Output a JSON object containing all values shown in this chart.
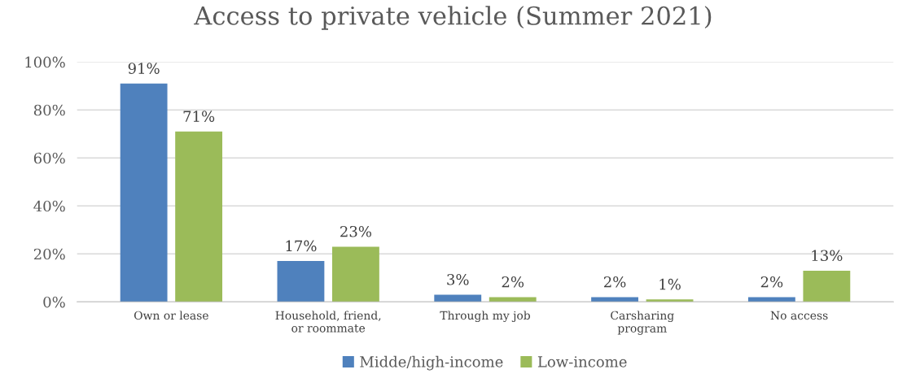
{
  "chart_data": {
    "type": "bar",
    "title": "Access to private vehicle (Summer 2021)",
    "categories": [
      "Own or lease",
      "Household, friend,\nor roommate",
      "Through my job",
      "Carsharing\nprogram",
      "No access"
    ],
    "series": [
      {
        "name": "Midde/high-income",
        "color": "#4f81bd",
        "values": [
          91,
          17,
          3,
          2,
          2
        ],
        "value_labels": [
          "91%",
          "17%",
          "3%",
          "2%",
          "2%"
        ]
      },
      {
        "name": "Low-income",
        "color": "#9bbb59",
        "values": [
          71,
          23,
          2,
          1,
          13
        ],
        "value_labels": [
          "71%",
          "23%",
          "2%",
          "1%",
          "13%"
        ]
      }
    ],
    "ylim": [
      0,
      100
    ],
    "yticks": [
      {
        "value": 0,
        "label": "0%"
      },
      {
        "value": 20,
        "label": "20%"
      },
      {
        "value": 40,
        "label": "40%"
      },
      {
        "value": 60,
        "label": "60%"
      },
      {
        "value": 80,
        "label": "80%"
      },
      {
        "value": 100,
        "label": "100%"
      }
    ],
    "grid": "y",
    "legend": "bottom"
  }
}
